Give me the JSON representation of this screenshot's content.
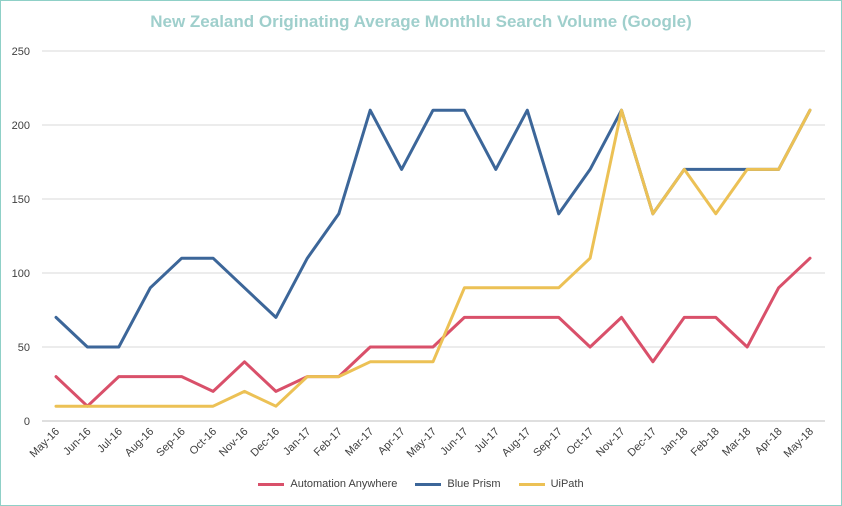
{
  "chart_data": {
    "type": "line",
    "title": "New Zealand Originating Average Monthlu Search Volume (Google)",
    "categories": [
      "May-16",
      "Jun-16",
      "Jul-16",
      "Aug-16",
      "Sep-16",
      "Oct-16",
      "Nov-16",
      "Dec-16",
      "Jan-17",
      "Feb-17",
      "Mar-17",
      "Apr-17",
      "May-17",
      "Jun-17",
      "Jul-17",
      "Aug-17",
      "Sep-17",
      "Oct-17",
      "Nov-17",
      "Dec-17",
      "Jan-18",
      "Feb-18",
      "Mar-18",
      "Apr-18",
      "May-18"
    ],
    "ylim": [
      0,
      250
    ],
    "yticks": [
      0,
      50,
      100,
      150,
      200,
      250
    ],
    "grid": true,
    "legend_position": "bottom",
    "series": [
      {
        "name": "Automation Anywhere",
        "color": "#d9506a",
        "values": [
          30,
          10,
          30,
          30,
          30,
          20,
          40,
          20,
          30,
          30,
          50,
          50,
          50,
          70,
          70,
          70,
          70,
          50,
          70,
          40,
          70,
          70,
          50,
          90,
          110
        ]
      },
      {
        "name": "Blue Prism",
        "color": "#3c6699",
        "values": [
          70,
          50,
          50,
          90,
          110,
          110,
          90,
          70,
          110,
          140,
          210,
          170,
          210,
          210,
          170,
          210,
          140,
          170,
          210,
          140,
          170,
          170,
          170,
          170,
          210
        ]
      },
      {
        "name": "UiPath",
        "color": "#ecc155",
        "values": [
          10,
          10,
          10,
          10,
          10,
          10,
          20,
          10,
          30,
          30,
          40,
          40,
          40,
          90,
          90,
          90,
          90,
          110,
          210,
          140,
          170,
          140,
          170,
          170,
          210
        ]
      }
    ]
  }
}
